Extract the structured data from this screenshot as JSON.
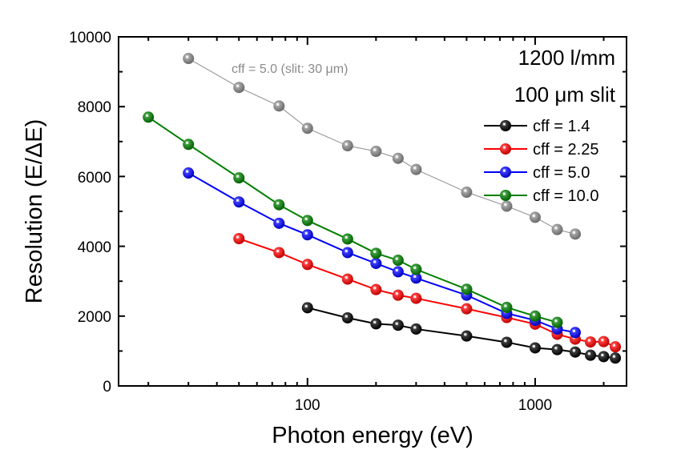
{
  "chart_data": {
    "type": "line",
    "title": "",
    "xlabel": "Photon energy (eV)",
    "ylabel": "Resolution (E/ΔE)",
    "xscale": "log",
    "xlim": [
      14.8,
      2520
    ],
    "ylim": [
      0,
      10000
    ],
    "xticks": [
      100,
      1000
    ],
    "xtick_labels": [
      "100",
      "1000"
    ],
    "yticks": [
      0,
      2000,
      4000,
      6000,
      8000,
      10000
    ],
    "ytick_labels": [
      "0",
      "2000",
      "4000",
      "6000",
      "8000",
      "10000"
    ],
    "grid": false,
    "legend_position": "top-right",
    "header_lines": [
      "1200 l/mm",
      "100 μm slit"
    ],
    "annotation": "cff = 5.0 (slit: 30 μm)",
    "series": [
      {
        "name": "cff = 5.0 (slit: 30 μm)",
        "color": "#8c8c8c",
        "in_legend": false,
        "x": [
          30,
          50,
          75,
          100,
          150,
          200,
          250,
          300,
          500,
          750,
          1000,
          1250,
          1500
        ],
        "y": [
          9380,
          8550,
          8020,
          7380,
          6880,
          6720,
          6520,
          6200,
          5550,
          5150,
          4830,
          4480,
          4350
        ]
      },
      {
        "name": "cff = 1.4",
        "color": "#000000",
        "in_legend": true,
        "x": [
          100,
          150,
          200,
          250,
          300,
          500,
          750,
          1000,
          1250,
          1500,
          1750,
          2000,
          2250
        ],
        "y": [
          2240,
          1950,
          1780,
          1740,
          1630,
          1430,
          1250,
          1090,
          1040,
          970,
          880,
          840,
          800
        ]
      },
      {
        "name": "cff = 2.25",
        "color": "#ff0000",
        "in_legend": true,
        "x": [
          50,
          75,
          100,
          150,
          200,
          250,
          300,
          500,
          750,
          1000,
          1250,
          1500,
          1750,
          2000,
          2250
        ],
        "y": [
          4220,
          3820,
          3480,
          3060,
          2760,
          2600,
          2510,
          2210,
          1960,
          1770,
          1480,
          1340,
          1260,
          1270,
          1120
        ]
      },
      {
        "name": "cff = 5.0",
        "color": "#0000ff",
        "in_legend": true,
        "x": [
          30,
          50,
          75,
          100,
          150,
          200,
          250,
          300,
          500,
          750,
          1000,
          1250,
          1500
        ],
        "y": [
          6100,
          5270,
          4660,
          4330,
          3820,
          3510,
          3270,
          3090,
          2600,
          2080,
          1880,
          1630,
          1530
        ]
      },
      {
        "name": "cff = 10.0",
        "color": "#008000",
        "in_legend": true,
        "x": [
          20,
          30,
          50,
          75,
          100,
          150,
          200,
          250,
          300,
          500,
          750,
          1000,
          1250
        ],
        "y": [
          7700,
          6920,
          5960,
          5190,
          4740,
          4210,
          3800,
          3600,
          3340,
          2770,
          2250,
          2000,
          1820
        ]
      }
    ]
  }
}
